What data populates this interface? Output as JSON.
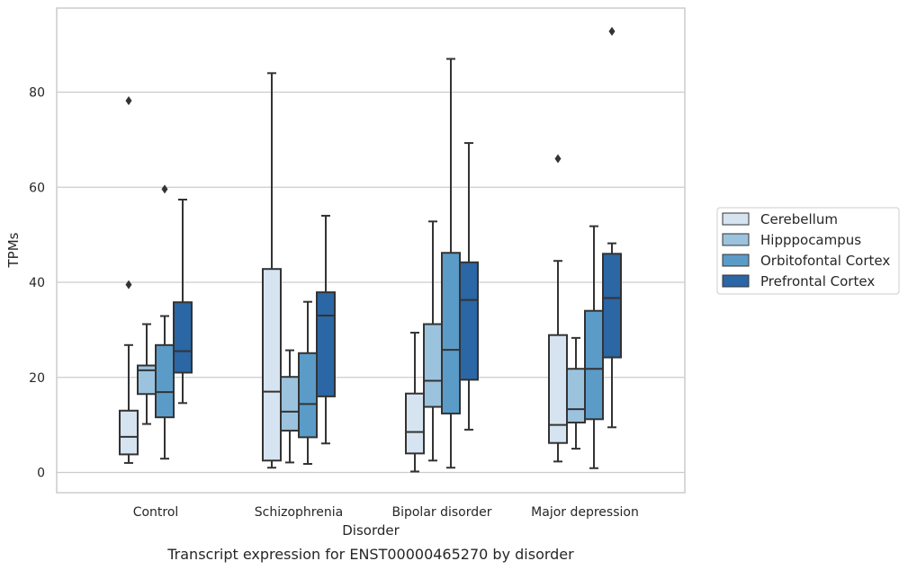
{
  "chart_data": {
    "type": "box",
    "caption": "Transcript expression for ENST00000465270 by disorder",
    "xlabel": "Disorder",
    "ylabel": "TPMs",
    "ylim": [
      -4,
      96
    ],
    "yticks": [
      0,
      20,
      40,
      60,
      80
    ],
    "grid": "horizontal",
    "legend_position": "right",
    "categories": [
      "Control",
      "Schizophrenia",
      "Bipolar disorder",
      "Major depression"
    ],
    "series": [
      {
        "name": "Cerebellum",
        "color": "#d6e3f0",
        "boxes": [
          {
            "whislo": 2.0,
            "q1": 3.8,
            "med": 7.5,
            "q3": 13.0,
            "whishi": 26.8,
            "fliers": [
              39.5,
              78.2
            ]
          },
          {
            "whislo": 1.0,
            "q1": 2.5,
            "med": 17.0,
            "q3": 42.8,
            "whishi": 84.0,
            "fliers": []
          },
          {
            "whislo": 0.2,
            "q1": 4.0,
            "med": 8.5,
            "q3": 16.6,
            "whishi": 29.4,
            "fliers": []
          },
          {
            "whislo": 2.3,
            "q1": 6.2,
            "med": 10.0,
            "q3": 28.9,
            "whishi": 44.5,
            "fliers": [
              66.0
            ]
          }
        ]
      },
      {
        "name": "Hipppocampus",
        "color": "#9cc3de",
        "boxes": [
          {
            "whislo": 10.2,
            "q1": 16.5,
            "med": 21.5,
            "q3": 22.5,
            "whishi": 31.2,
            "fliers": []
          },
          {
            "whislo": 2.1,
            "q1": 8.8,
            "med": 12.8,
            "q3": 20.1,
            "whishi": 25.7,
            "fliers": []
          },
          {
            "whislo": 2.5,
            "q1": 13.8,
            "med": 19.3,
            "q3": 31.2,
            "whishi": 52.8,
            "fliers": []
          },
          {
            "whislo": 5.0,
            "q1": 10.5,
            "med": 13.3,
            "q3": 21.8,
            "whishi": 28.3,
            "fliers": []
          }
        ]
      },
      {
        "name": "Orbitofontal Cortex",
        "color": "#5b9bc8",
        "boxes": [
          {
            "whislo": 2.9,
            "q1": 11.6,
            "med": 16.9,
            "q3": 26.8,
            "whishi": 32.9,
            "fliers": [
              59.6
            ]
          },
          {
            "whislo": 1.8,
            "q1": 7.4,
            "med": 14.4,
            "q3": 25.1,
            "whishi": 35.9,
            "fliers": []
          },
          {
            "whislo": 1.0,
            "q1": 12.4,
            "med": 25.8,
            "q3": 46.2,
            "whishi": 87.0,
            "fliers": []
          },
          {
            "whislo": 0.9,
            "q1": 11.2,
            "med": 21.8,
            "q3": 34.0,
            "whishi": 51.8,
            "fliers": []
          }
        ]
      },
      {
        "name": "Prefrontal Cortex",
        "color": "#2b66a5",
        "boxes": [
          {
            "whislo": 14.6,
            "q1": 21.0,
            "med": 25.5,
            "q3": 35.8,
            "whishi": 57.4,
            "fliers": []
          },
          {
            "whislo": 6.1,
            "q1": 16.0,
            "med": 33.0,
            "q3": 37.9,
            "whishi": 54.0,
            "fliers": []
          },
          {
            "whislo": 9.0,
            "q1": 19.5,
            "med": 36.3,
            "q3": 44.2,
            "whishi": 69.3,
            "fliers": []
          },
          {
            "whislo": 9.5,
            "q1": 24.2,
            "med": 36.7,
            "q3": 46.0,
            "whishi": 48.2,
            "fliers": [
              92.8
            ]
          }
        ]
      }
    ]
  }
}
